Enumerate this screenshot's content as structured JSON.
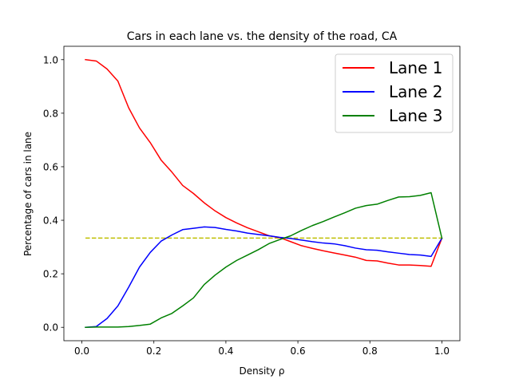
{
  "chart_data": {
    "type": "line",
    "title": "Cars in each lane vs. the density of the road, CA",
    "xlabel": "Density ρ",
    "ylabel": "Percentage of cars in lane",
    "xlim": [
      -0.05,
      1.05
    ],
    "ylim": [
      -0.05,
      1.05
    ],
    "xticks": [
      0.0,
      0.2,
      0.4,
      0.6,
      0.8,
      1.0
    ],
    "xtick_labels": [
      "0.0",
      "0.2",
      "0.4",
      "0.6",
      "0.8",
      "1.0"
    ],
    "yticks": [
      0.0,
      0.2,
      0.4,
      0.6,
      0.8,
      1.0
    ],
    "ytick_labels": [
      "0.0",
      "0.2",
      "0.4",
      "0.6",
      "0.8",
      "1.0"
    ],
    "grid": false,
    "legend_position": "top-right",
    "x": [
      0.01,
      0.04,
      0.07,
      0.1,
      0.13,
      0.16,
      0.19,
      0.22,
      0.25,
      0.28,
      0.31,
      0.34,
      0.37,
      0.4,
      0.43,
      0.46,
      0.49,
      0.52,
      0.55,
      0.58,
      0.61,
      0.64,
      0.67,
      0.7,
      0.73,
      0.76,
      0.79,
      0.82,
      0.85,
      0.88,
      0.91,
      0.94,
      0.97,
      1.0
    ],
    "series": [
      {
        "name": "Lane 1",
        "color": "#ff0000",
        "values": [
          1.0,
          0.995,
          0.965,
          0.92,
          0.82,
          0.745,
          0.69,
          0.625,
          0.58,
          0.53,
          0.5,
          0.465,
          0.435,
          0.41,
          0.39,
          0.372,
          0.357,
          0.342,
          0.335,
          0.32,
          0.305,
          0.295,
          0.286,
          0.278,
          0.27,
          0.262,
          0.25,
          0.248,
          0.24,
          0.233,
          0.233,
          0.231,
          0.228,
          0.333
        ]
      },
      {
        "name": "Lane 2",
        "color": "#0000ff",
        "values": [
          0.0,
          0.003,
          0.033,
          0.08,
          0.15,
          0.225,
          0.28,
          0.322,
          0.345,
          0.365,
          0.37,
          0.375,
          0.373,
          0.366,
          0.36,
          0.352,
          0.347,
          0.342,
          0.336,
          0.332,
          0.326,
          0.32,
          0.315,
          0.312,
          0.305,
          0.296,
          0.29,
          0.288,
          0.282,
          0.277,
          0.272,
          0.27,
          0.265,
          0.333
        ]
      },
      {
        "name": "Lane 3",
        "color": "#008000",
        "values": [
          0.0,
          0.001,
          0.001,
          0.001,
          0.003,
          0.007,
          0.012,
          0.035,
          0.052,
          0.08,
          0.11,
          0.16,
          0.195,
          0.225,
          0.25,
          0.27,
          0.29,
          0.313,
          0.328,
          0.342,
          0.362,
          0.38,
          0.395,
          0.412,
          0.428,
          0.445,
          0.455,
          0.46,
          0.474,
          0.487,
          0.488,
          0.493,
          0.503,
          0.333
        ]
      }
    ],
    "reference_line": {
      "y": 0.3333,
      "color": "#bfbf00",
      "style": "dashed"
    }
  }
}
